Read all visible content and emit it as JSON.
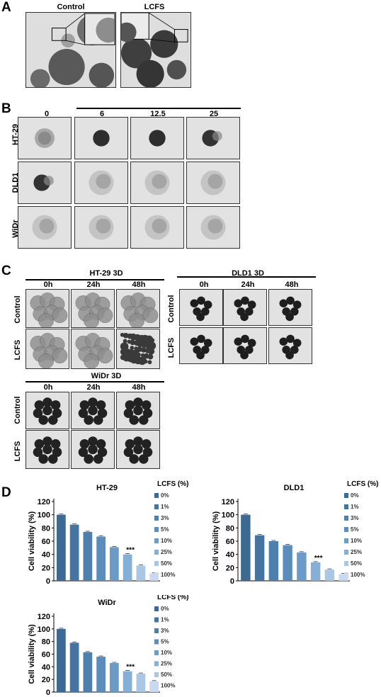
{
  "panel_a": {
    "letter": "A",
    "labels": [
      "Control",
      "LCFS"
    ],
    "colors": {
      "bg": "#dcdcdc",
      "cell": "#4a4a4a"
    }
  },
  "panel_b": {
    "letter": "B",
    "concentrations": [
      "0",
      "6",
      "12.5",
      "25"
    ],
    "rows": [
      "HT-29",
      "DLD1",
      "WiDr"
    ]
  },
  "panel_c": {
    "letter": "C",
    "groups": [
      {
        "title": "HT-29 3D",
        "times": [
          "0h",
          "24h",
          "48h"
        ],
        "rows": [
          "Control",
          "LCFS"
        ]
      },
      {
        "title": "DLD1 3D",
        "times": [
          "0h",
          "24h",
          "48h"
        ],
        "rows": [
          "Control",
          "LCFS"
        ]
      },
      {
        "title": "WiDr 3D",
        "times": [
          "0h",
          "24h",
          "48h"
        ],
        "rows": [
          "Control",
          "LCFS"
        ]
      }
    ]
  },
  "panel_d": {
    "letter": "D"
  },
  "chart_data": [
    {
      "type": "bar",
      "title": "HT-29",
      "ylabel": "Cell viability (%)",
      "legend_title": "LCFS (%)",
      "categories": [
        "0%",
        "1%",
        "3%",
        "5%",
        "10%",
        "25%",
        "50%",
        "100%"
      ],
      "values": [
        100,
        85,
        74,
        67,
        51,
        40,
        23,
        11
      ],
      "ylim": [
        0,
        120
      ],
      "yticks": [
        0,
        20,
        40,
        60,
        80,
        100,
        120
      ],
      "significance": {
        "index": 5,
        "label": "***"
      },
      "legend_placement": "right"
    },
    {
      "type": "bar",
      "title": "DLD1",
      "ylabel": "Cell viability (%)",
      "legend_title": "LCFS (%)",
      "categories": [
        "0%",
        "1%",
        "3%",
        "5%",
        "10%",
        "25%",
        "50%",
        "100%"
      ],
      "values": [
        100,
        69,
        60,
        54,
        43,
        28,
        17,
        10
      ],
      "ylim": [
        0,
        120
      ],
      "yticks": [
        0,
        20,
        40,
        60,
        80,
        100,
        120
      ],
      "significance": {
        "index": 5,
        "label": "***"
      },
      "legend_placement": "right"
    },
    {
      "type": "bar",
      "title": "WiDr",
      "ylabel": "Cell viability (%)",
      "legend_title": "LCFS (%)",
      "categories": [
        "0%",
        "1%",
        "3%",
        "5%",
        "10%",
        "25%",
        "50%",
        "100%"
      ],
      "values": [
        100,
        78,
        63,
        56,
        46,
        33,
        29,
        17
      ],
      "ylim": [
        0,
        120
      ],
      "yticks": [
        0,
        20,
        40,
        60,
        80,
        100,
        120
      ],
      "significance": {
        "index": 5,
        "label": "***"
      },
      "legend_placement": "right"
    }
  ],
  "bar_colors": [
    "#3d6a93",
    "#44749f",
    "#4e80ad",
    "#5b8cbb",
    "#6c9bc8",
    "#86afd6",
    "#a9c6e4",
    "#c9daf0"
  ]
}
